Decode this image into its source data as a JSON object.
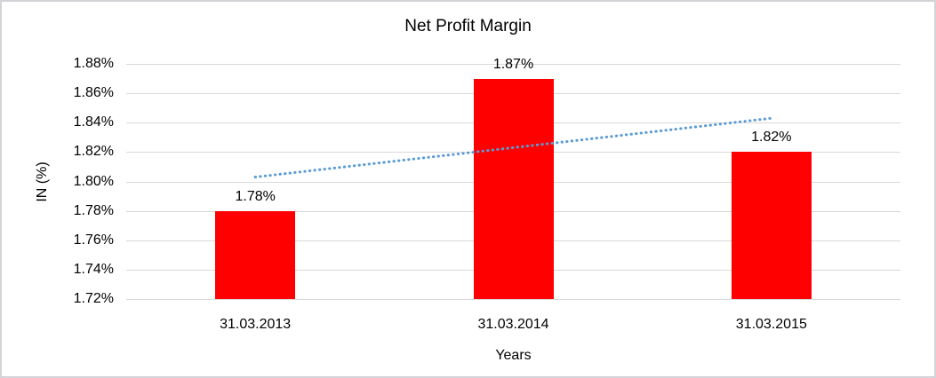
{
  "chart_data": {
    "type": "bar",
    "title": "Net Profit Margin",
    "xlabel": "Years",
    "ylabel": "IN (%)",
    "categories": [
      "31.03.2013",
      "31.03.2014",
      "31.03.2015"
    ],
    "values": [
      1.78,
      1.87,
      1.82
    ],
    "data_labels": [
      "1.78%",
      "1.87%",
      "1.82%"
    ],
    "yticks": [
      {
        "value": 1.88,
        "label": "1.88%"
      },
      {
        "value": 1.86,
        "label": "1.86%"
      },
      {
        "value": 1.84,
        "label": "1.84%"
      },
      {
        "value": 1.82,
        "label": "1.82%"
      },
      {
        "value": 1.8,
        "label": "1.80%"
      },
      {
        "value": 1.78,
        "label": "1.78%"
      },
      {
        "value": 1.76,
        "label": "1.76%"
      },
      {
        "value": 1.74,
        "label": "1.74%"
      },
      {
        "value": 1.72,
        "label": "1.72%"
      }
    ],
    "ylim": [
      1.72,
      1.88
    ],
    "grid": true,
    "legend": "none",
    "bar_color": "#ff0000",
    "gridline_color": "#d9d9d9",
    "trendline": {
      "style": "dotted",
      "color": "#5b9bd5",
      "start_value": 1.803,
      "end_value": 1.843
    }
  }
}
